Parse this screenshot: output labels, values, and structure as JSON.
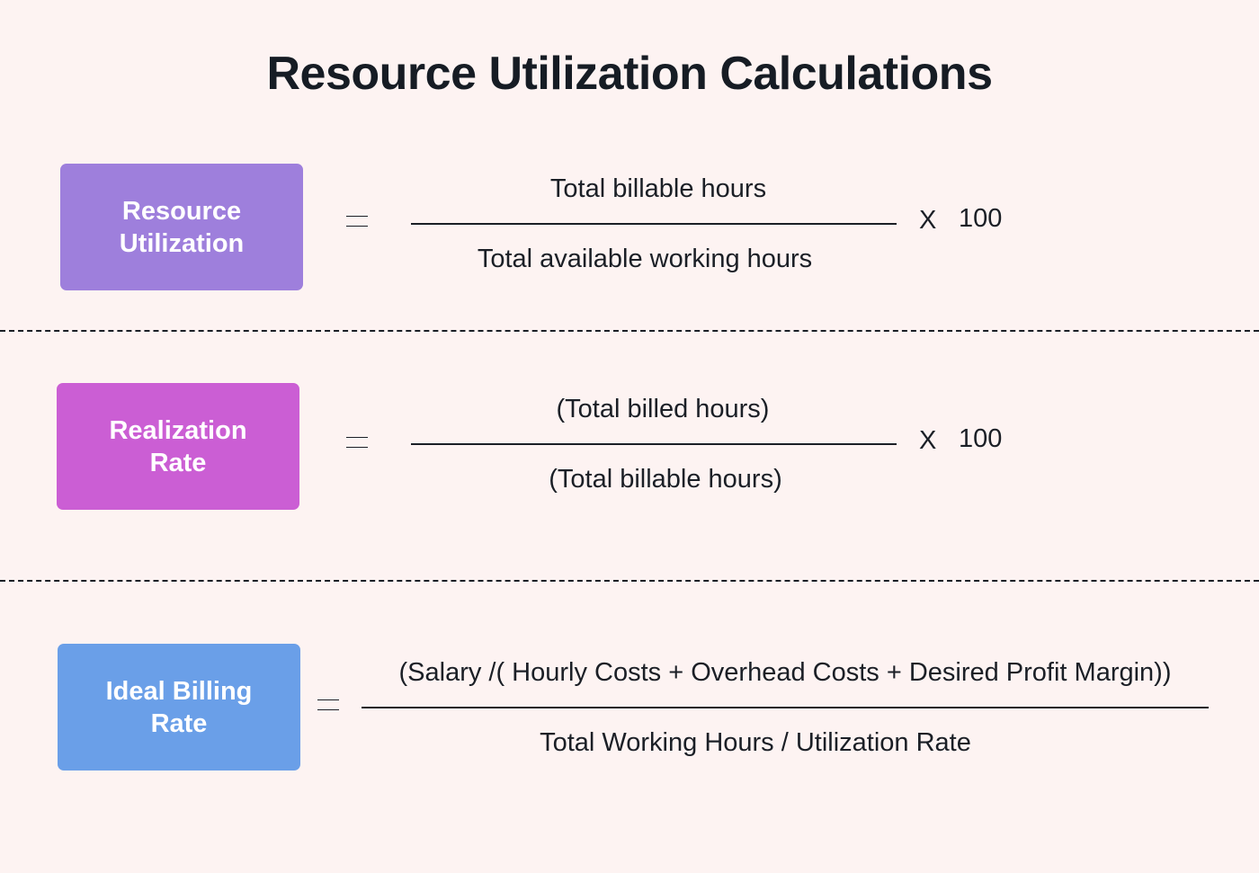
{
  "title": "Resource Utilization Calculations",
  "colors": {
    "background": "#fdf3f2",
    "resource_utilization": "#9e7fdc",
    "realization_rate": "#cb5ed4",
    "ideal_billing_rate": "#6a9fe8",
    "text": "#1b1f26"
  },
  "formulas": [
    {
      "label": [
        "Resource",
        "Utilization"
      ],
      "numerator": "Total billable hours",
      "denominator": "Total available working hours",
      "multiplier_symbol": "X",
      "multiplier_value": "100"
    },
    {
      "label": [
        "Realization",
        "Rate"
      ],
      "numerator": "(Total billed hours)",
      "denominator": "(Total billable hours)",
      "multiplier_symbol": "X",
      "multiplier_value": "100"
    },
    {
      "label": [
        "Ideal Billing",
        "Rate"
      ],
      "numerator": "(Salary /( Hourly Costs + Overhead Costs + Desired Profit Margin))",
      "denominator": "Total Working Hours / Utilization Rate"
    }
  ]
}
